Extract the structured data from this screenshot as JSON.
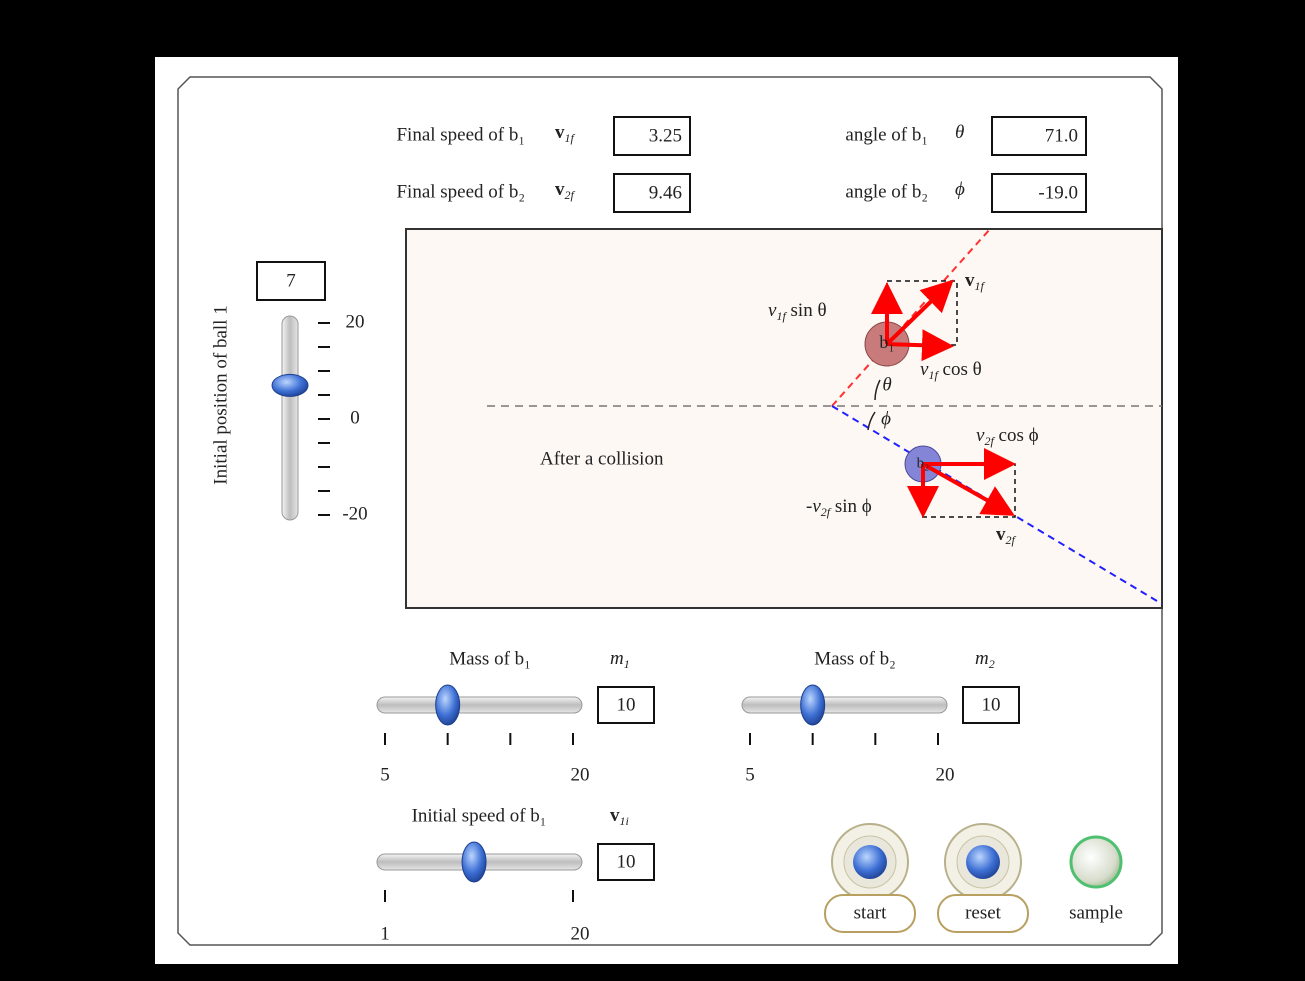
{
  "readouts": [
    {
      "label": "Final speed of b₁",
      "symbol": {
        "base": "v",
        "sub": "1f"
      },
      "value": "3.25"
    },
    {
      "label": "angle of b₁",
      "symbol": {
        "base": "θ"
      },
      "value": "71.0"
    },
    {
      "label": "Final speed of b₂",
      "symbol": {
        "base": "v",
        "sub": "2f"
      },
      "value": "9.46"
    },
    {
      "label": "angle of b₂",
      "symbol": {
        "base": "ϕ"
      },
      "value": "-19.0"
    }
  ],
  "position_slider": {
    "label": "Initial position of ball 1",
    "value": 7,
    "ticks": [
      20,
      0,
      -20
    ]
  },
  "diagram": {
    "caption": "After a collision",
    "balls": [
      "b₁",
      "b₂"
    ],
    "labels": [
      {
        "base": "v",
        "sub": "1f",
        "suffix": " sin θ"
      },
      {
        "base": "v",
        "sub": "1f",
        "suffix": " cos θ"
      },
      {
        "base": "v",
        "sub": "1f"
      },
      {
        "base": "v",
        "sub": "2f",
        "suffix": " cos ϕ"
      },
      {
        "prefix": "-",
        "base": "v",
        "sub": "2f",
        "suffix": " sin ϕ"
      },
      {
        "base": "v",
        "sub": "2f"
      }
    ],
    "angles": [
      "θ",
      "ϕ"
    ]
  },
  "mass_sliders": [
    {
      "label": "Mass of b₁",
      "symbol": {
        "base": "m",
        "sub": "1"
      },
      "value": 10,
      "ticks": [
        5,
        20
      ]
    },
    {
      "label": "Mass of b₂",
      "symbol": {
        "base": "m",
        "sub": "2"
      },
      "value": 10,
      "ticks": [
        5,
        20
      ]
    }
  ],
  "speed_slider": {
    "label": "Initial speed of b₁",
    "symbol": {
      "base": "v",
      "sub": "1i"
    },
    "value": 10,
    "ticks": [
      1,
      20
    ]
  },
  "buttons": [
    "start",
    "reset",
    "sample"
  ]
}
